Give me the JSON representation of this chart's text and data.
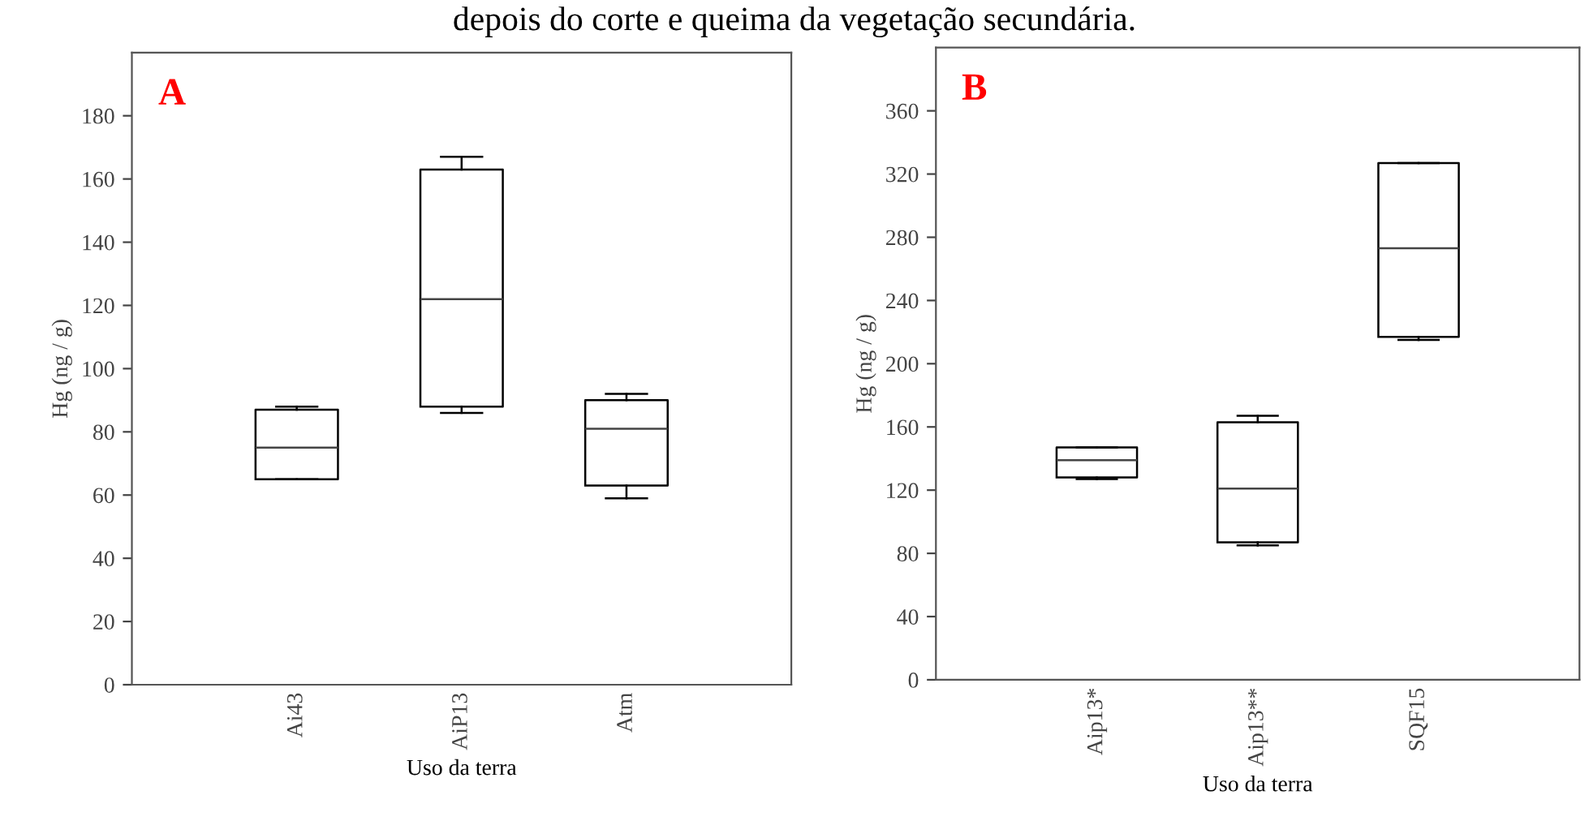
{
  "chart_data": [
    {
      "type": "box",
      "title": "A",
      "annotations": [
        "depois do corte e queima da vegetação secundária."
      ],
      "xlabel": "Uso da terra",
      "ylabel": "Hg (ng / g)",
      "categories": [
        "Ai43",
        "AiP13",
        "Atm"
      ],
      "boxes": [
        {
          "low": 65,
          "q1": 65,
          "median": 75,
          "q3": 87,
          "high": 88
        },
        {
          "low": 86,
          "q1": 88,
          "median": 122,
          "q3": 163,
          "high": 167
        },
        {
          "low": 59,
          "q1": 63,
          "median": 81,
          "q3": 90,
          "high": 92
        }
      ],
      "ylim": [
        0,
        200
      ],
      "yticks": [
        0,
        20,
        40,
        60,
        80,
        100,
        120,
        140,
        160,
        180
      ],
      "grid": false
    },
    {
      "type": "box",
      "title": "B",
      "xlabel": "Uso da terra",
      "ylabel": "Hg (ng / g)",
      "categories": [
        "Aip13*",
        "Aip13**",
        "SQF15"
      ],
      "boxes": [
        {
          "low": 127,
          "q1": 128,
          "median": 139,
          "q3": 147,
          "high": 147
        },
        {
          "low": 85,
          "q1": 87,
          "median": 121,
          "q3": 163,
          "high": 167
        },
        {
          "low": 215,
          "q1": 217,
          "median": 273,
          "q3": 327,
          "high": 327
        }
      ],
      "ylim": [
        0,
        400
      ],
      "yticks": [
        0,
        40,
        80,
        120,
        160,
        200,
        240,
        280,
        320,
        360
      ],
      "grid": false
    }
  ]
}
